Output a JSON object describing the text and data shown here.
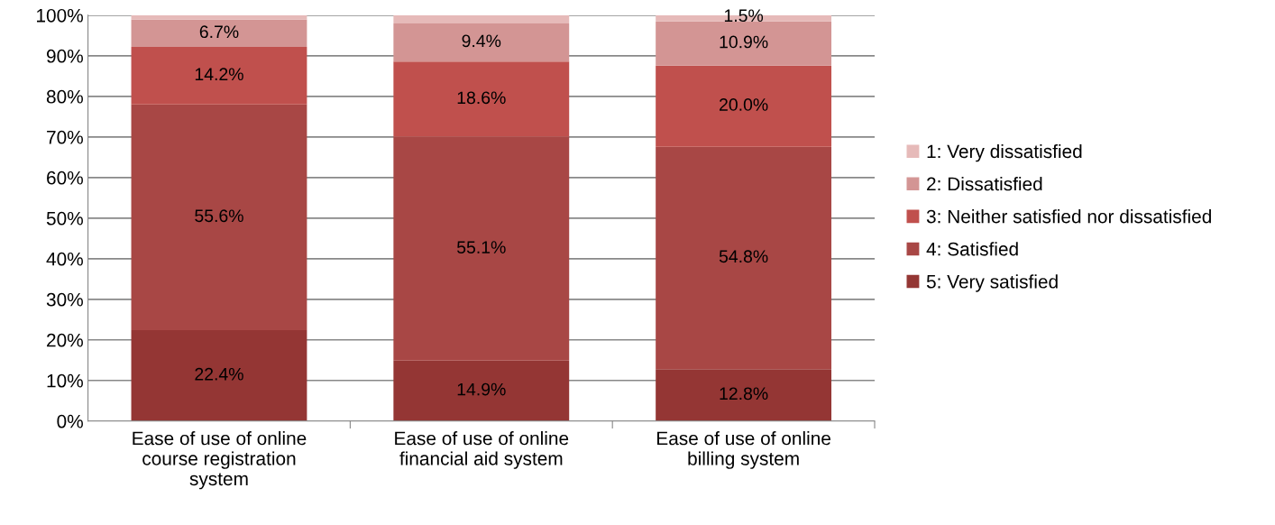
{
  "chart_data": {
    "type": "bar",
    "stacked": true,
    "categories": [
      "Ease of use of online\ncourse registration\nsystem",
      "Ease of use of online\nfinancial aid system",
      "Ease of use of online\nbilling system"
    ],
    "series": [
      {
        "name": "5: Very satisfied",
        "color": "#943634",
        "values": [
          22.4,
          14.9,
          12.8
        ],
        "value_labels": [
          "22.4%",
          "14.9%",
          "12.8%"
        ]
      },
      {
        "name": "4: Satisfied",
        "color": "#a84745",
        "values": [
          55.6,
          55.1,
          54.8
        ],
        "value_labels": [
          "55.6%",
          "55.1%",
          "54.8%"
        ]
      },
      {
        "name": "3: Neither satisfied nor dissatisfied",
        "color": "#c0504d",
        "values": [
          14.2,
          18.6,
          20.0
        ],
        "value_labels": [
          "14.2%",
          "18.6%",
          "20.0%"
        ]
      },
      {
        "name": "2: Dissatisfied",
        "color": "#d39594",
        "values": [
          6.7,
          9.4,
          10.9
        ],
        "value_labels": [
          "6.7%",
          "9.4%",
          "10.9%"
        ]
      },
      {
        "name": "1: Very dissatisfied",
        "color": "#e6bab9",
        "values": [
          1.1,
          2.0,
          1.5
        ],
        "value_labels": [
          null,
          null,
          "1.5%"
        ]
      }
    ],
    "ylim": [
      0,
      100
    ],
    "yticks": [
      {
        "value": 0,
        "label": "0%"
      },
      {
        "value": 10,
        "label": "10%"
      },
      {
        "value": 20,
        "label": "20%"
      },
      {
        "value": 30,
        "label": "30%"
      },
      {
        "value": 40,
        "label": "40%"
      },
      {
        "value": 50,
        "label": "50%"
      },
      {
        "value": 60,
        "label": "60%"
      },
      {
        "value": 70,
        "label": "70%"
      },
      {
        "value": 80,
        "label": "80%"
      },
      {
        "value": 90,
        "label": "90%"
      },
      {
        "value": 100,
        "label": "100%"
      }
    ],
    "grid": "y",
    "legend": "right"
  }
}
